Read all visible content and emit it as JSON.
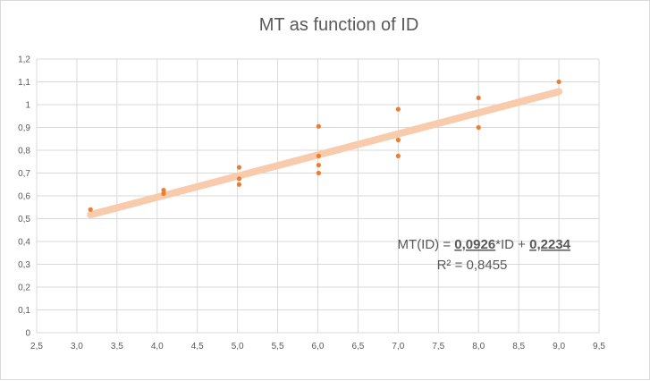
{
  "chart_data": {
    "type": "scatter",
    "title": "MT as function of ID",
    "xlim": [
      2.5,
      9.5
    ],
    "ylim": [
      0,
      1.2
    ],
    "x_ticks": [
      "2,5",
      "3,0",
      "3,5",
      "4,0",
      "4,5",
      "5,0",
      "5,5",
      "6,0",
      "6,5",
      "7,0",
      "7,5",
      "8,0",
      "8,5",
      "9,0",
      "9,5"
    ],
    "y_ticks": [
      "0",
      "0,1",
      "0,2",
      "0,3",
      "0,4",
      "0,5",
      "0,6",
      "0,7",
      "0,8",
      "0,9",
      "1",
      "1,1",
      "1,2"
    ],
    "grid": true,
    "colors": {
      "points": "#ed7d31",
      "trendline": "#f8cbad",
      "grid": "#d9d9d9",
      "text": "#595959"
    },
    "points": [
      {
        "x": 3.17,
        "y": 0.54
      },
      {
        "x": 4.08,
        "y": 0.625
      },
      {
        "x": 4.08,
        "y": 0.61
      },
      {
        "x": 5.02,
        "y": 0.725
      },
      {
        "x": 5.02,
        "y": 0.675
      },
      {
        "x": 5.02,
        "y": 0.65
      },
      {
        "x": 6.01,
        "y": 0.905
      },
      {
        "x": 6.01,
        "y": 0.775
      },
      {
        "x": 6.01,
        "y": 0.735
      },
      {
        "x": 6.01,
        "y": 0.7
      },
      {
        "x": 7.0,
        "y": 0.98
      },
      {
        "x": 7.0,
        "y": 0.845
      },
      {
        "x": 7.0,
        "y": 0.775
      },
      {
        "x": 8.0,
        "y": 1.03
      },
      {
        "x": 8.0,
        "y": 0.9
      },
      {
        "x": 9.0,
        "y": 1.1
      }
    ],
    "trendline": {
      "slope": 0.0926,
      "intercept": 0.2234,
      "x_start": 3.17,
      "x_end": 9.0
    },
    "equation": {
      "prefix": "MT(ID) = ",
      "slope": "0,0926",
      "mid": "*ID + ",
      "intercept": "0,2234",
      "r2": "R² = 0,8455"
    }
  }
}
